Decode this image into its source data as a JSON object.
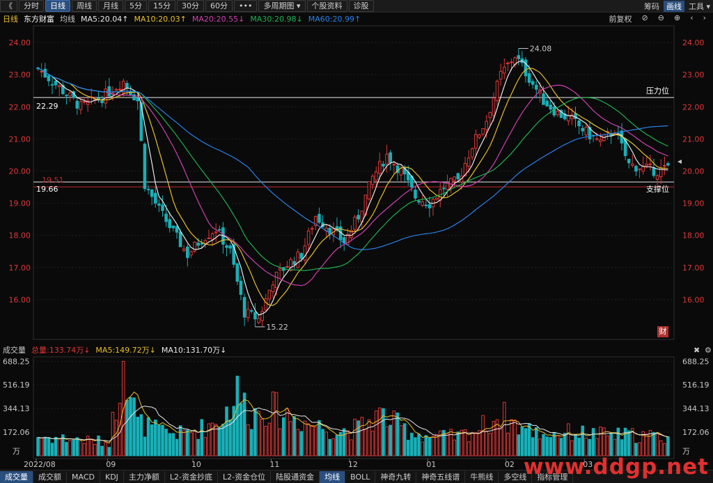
{
  "toolbar": {
    "back": "《",
    "tabs": [
      "分时",
      "日线",
      "周线",
      "月线",
      "5分",
      "15分",
      "30分",
      "60分",
      "•••",
      "多周期图 ▾",
      "个股资料",
      "诊股"
    ],
    "active_index": 1,
    "right": {
      "chips": "筹码",
      "draw": "画线",
      "tools": "工具 ▾"
    }
  },
  "header": {
    "period": "日线",
    "name": "东方财富",
    "ma_label": "均线",
    "ma5": "MA5:20.04",
    "ma10": "MA10:20.03",
    "ma20": "MA20:20.55",
    "ma30": "MA30:20.98",
    "ma60": "MA60:20.99",
    "restore": "前复权",
    "colors": {
      "ma5": "#e8e8e8",
      "ma10": "#e8c02a",
      "ma20": "#d040b0",
      "ma30": "#20b050",
      "ma60": "#2a80e8",
      "up": "#e03838",
      "down": "#18b0b8"
    }
  },
  "price_axis": {
    "ticks": [
      "24.00",
      "23.00",
      "22.00",
      "21.00",
      "20.00",
      "19.00",
      "18.00",
      "17.00",
      "16.00"
    ]
  },
  "annotations": {
    "high": "24.08",
    "low": "15.22",
    "resist_label": "压力位",
    "resist_value": "22.29",
    "support_label": "支撑位",
    "support_value": "19.66",
    "red_line_value": "19.51",
    "cai": "财"
  },
  "volume_header": {
    "label": "成交量",
    "total": "总量:133.74万",
    "ma5": "MA5:149.72万",
    "ma10": "MA10:131.70万"
  },
  "volume_axis": {
    "ticks": [
      "688.25",
      "516.19",
      "344.13",
      "172.06"
    ],
    "unit": "万"
  },
  "date_axis": {
    "labels": [
      "2022/08",
      "09",
      "10",
      "11",
      "12",
      "01",
      "02",
      "03"
    ]
  },
  "bottom_tabs": [
    "成交量",
    "成交额",
    "MACD",
    "KDJ",
    "主力净额",
    "L2-资金抄底",
    "L2-资金仓位",
    "陆股通资金",
    "均线",
    "BOLL",
    "神奇九转",
    "神奇五线谱",
    "牛熊线",
    "多空线",
    "指标管理"
  ],
  "bottom_active": [
    0,
    8
  ],
  "watermark": "www.ddgp.net",
  "chart_data": {
    "type": "candlestick",
    "ylim": [
      15.0,
      24.5
    ],
    "keypoints": [
      [
        0,
        23.2
      ],
      [
        6,
        22.6
      ],
      [
        12,
        22.0
      ],
      [
        18,
        22.3
      ],
      [
        24,
        22.8
      ],
      [
        28,
        22.2
      ],
      [
        30,
        19.6
      ],
      [
        34,
        18.8
      ],
      [
        38,
        18.1
      ],
      [
        42,
        17.4
      ],
      [
        46,
        17.9
      ],
      [
        50,
        18.2
      ],
      [
        54,
        17.5
      ],
      [
        58,
        15.6
      ],
      [
        62,
        15.4
      ],
      [
        66,
        16.6
      ],
      [
        70,
        17.1
      ],
      [
        74,
        17.4
      ],
      [
        78,
        18.6
      ],
      [
        82,
        18.2
      ],
      [
        86,
        17.8
      ],
      [
        90,
        18.6
      ],
      [
        94,
        19.8
      ],
      [
        98,
        20.5
      ],
      [
        102,
        20.0
      ],
      [
        106,
        19.2
      ],
      [
        110,
        19.0
      ],
      [
        114,
        19.5
      ],
      [
        118,
        19.7
      ],
      [
        122,
        20.8
      ],
      [
        126,
        21.6
      ],
      [
        130,
        23.0
      ],
      [
        134,
        23.6
      ],
      [
        138,
        22.9
      ],
      [
        142,
        22.2
      ],
      [
        146,
        21.8
      ],
      [
        150,
        21.6
      ],
      [
        154,
        21.2
      ],
      [
        158,
        20.9
      ],
      [
        162,
        21.3
      ],
      [
        166,
        20.2
      ],
      [
        170,
        20.1
      ],
      [
        174,
        20.0
      ],
      [
        177,
        20.1
      ]
    ],
    "volume_keypoints": [
      [
        0,
        140
      ],
      [
        10,
        120
      ],
      [
        20,
        100
      ],
      [
        24,
        680
      ],
      [
        28,
        240
      ],
      [
        34,
        180
      ],
      [
        40,
        160
      ],
      [
        46,
        200
      ],
      [
        52,
        280
      ],
      [
        56,
        460
      ],
      [
        60,
        300
      ],
      [
        64,
        360
      ],
      [
        70,
        300
      ],
      [
        76,
        240
      ],
      [
        84,
        180
      ],
      [
        90,
        200
      ],
      [
        96,
        300
      ],
      [
        104,
        180
      ],
      [
        110,
        140
      ],
      [
        118,
        140
      ],
      [
        124,
        200
      ],
      [
        130,
        300
      ],
      [
        136,
        200
      ],
      [
        142,
        160
      ],
      [
        150,
        170
      ],
      [
        160,
        150
      ],
      [
        170,
        150
      ],
      [
        177,
        130
      ]
    ],
    "volume_ylim": [
      0,
      700
    ]
  }
}
